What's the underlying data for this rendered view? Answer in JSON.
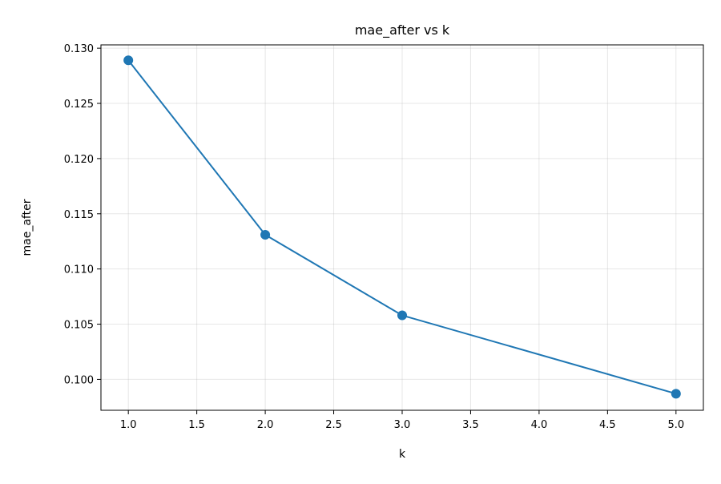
{
  "chart_data": {
    "type": "line",
    "title": "mae_after vs k",
    "xlabel": "k",
    "ylabel": "mae_after",
    "xlim": [
      0.8,
      5.2
    ],
    "ylim": [
      0.0972,
      0.1303
    ],
    "xticks": [
      1.0,
      1.5,
      2.0,
      2.5,
      3.0,
      3.5,
      4.0,
      4.5,
      5.0
    ],
    "xtick_labels": [
      "1.0",
      "1.5",
      "2.0",
      "2.5",
      "3.0",
      "3.5",
      "4.0",
      "4.5",
      "5.0"
    ],
    "yticks": [
      0.1,
      0.105,
      0.11,
      0.115,
      0.12,
      0.125,
      0.13
    ],
    "ytick_labels": [
      "0.100",
      "0.105",
      "0.110",
      "0.115",
      "0.120",
      "0.125",
      "0.130"
    ],
    "grid": true,
    "legend": "none",
    "series": [
      {
        "color": "#1f77b4",
        "marker": "circle",
        "x": [
          1.0,
          2.0,
          3.0,
          5.0
        ],
        "y": [
          0.1289,
          0.1131,
          0.1058,
          0.0987
        ]
      }
    ]
  }
}
